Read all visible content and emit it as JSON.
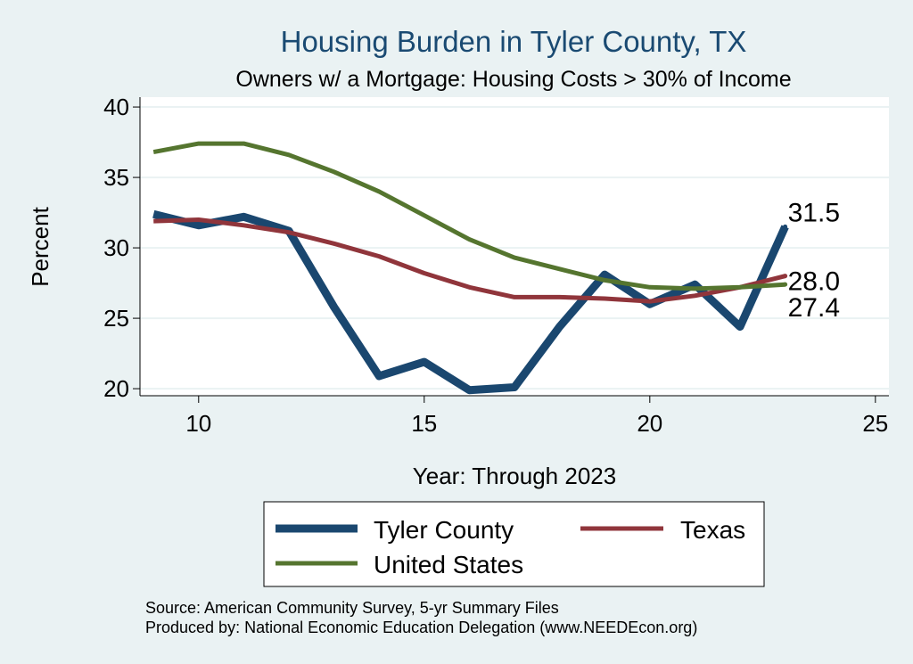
{
  "chart_data": {
    "type": "line",
    "title": "Housing Burden in Tyler County, TX",
    "subtitle": "Owners w/ a Mortgage: Housing Costs > 30% of Income",
    "xlabel": "Year: Through 2023",
    "ylabel": "Percent",
    "xlim": [
      8.7,
      25.3
    ],
    "ylim": [
      19.5,
      40.7
    ],
    "xticks": [
      10,
      15,
      20,
      25
    ],
    "yticks": [
      20,
      25,
      30,
      35,
      40
    ],
    "grid": true,
    "legend_position": "bottom",
    "series": [
      {
        "name": "Tyler County",
        "color": "#1a476f",
        "x": [
          9,
          10,
          11,
          12,
          13,
          14,
          15,
          16,
          17,
          18,
          19,
          20,
          21,
          22,
          23
        ],
        "values": [
          32.4,
          31.6,
          32.2,
          31.2,
          25.8,
          20.9,
          21.9,
          19.9,
          20.1,
          24.4,
          28.1,
          26.0,
          27.4,
          24.4,
          31.5
        ],
        "end_label": "31.5"
      },
      {
        "name": "Texas",
        "color": "#90353b",
        "x": [
          9,
          10,
          11,
          12,
          13,
          14,
          15,
          16,
          17,
          18,
          19,
          20,
          21,
          22,
          23
        ],
        "values": [
          31.9,
          32.0,
          31.6,
          31.1,
          30.3,
          29.4,
          28.2,
          27.2,
          26.5,
          26.5,
          26.4,
          26.2,
          26.6,
          27.2,
          28.0
        ],
        "end_label": "28.0"
      },
      {
        "name": "United States",
        "color": "#55752f",
        "x": [
          9,
          10,
          11,
          12,
          13,
          14,
          15,
          16,
          17,
          18,
          19,
          20,
          21,
          22,
          23
        ],
        "values": [
          36.8,
          37.4,
          37.4,
          36.6,
          35.4,
          34.0,
          32.3,
          30.6,
          29.3,
          28.5,
          27.7,
          27.2,
          27.1,
          27.2,
          27.4
        ],
        "end_label": "27.4"
      }
    ],
    "notes": [
      "Source: American Community Survey, 5-yr Summary Files",
      "Produced by: National Economic Education Delegation (www.NEEDEcon.org)"
    ]
  }
}
